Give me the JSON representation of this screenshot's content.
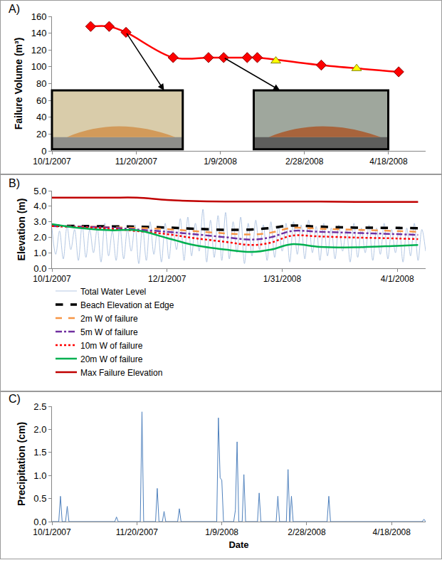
{
  "chart_data": [
    {
      "label": "A)",
      "type": "line",
      "x": [
        "2007-10-24",
        "2007-11-04",
        "2007-11-14",
        "2007-12-12",
        "2008-01-02",
        "2008-01-11",
        "2008-01-25",
        "2008-01-31",
        "2008-02-11",
        "2008-03-09",
        "2008-03-30",
        "2008-04-24"
      ],
      "series": [
        {
          "type": "line",
          "color": "#ff0000",
          "marker": "diamond",
          "line_style": "solid",
          "values": [
            148,
            148,
            141,
            111,
            111,
            111,
            111,
            111,
            null,
            102,
            null,
            94
          ]
        },
        {
          "type": "scatter",
          "color": "#ffff00",
          "marker": "triangle-up",
          "values": [
            null,
            null,
            null,
            null,
            null,
            null,
            null,
            null,
            107,
            null,
            98,
            null
          ]
        }
      ],
      "y_label": "Failure Volume (m³)",
      "xlim": [
        "2007-10-01",
        "2008-05-10"
      ],
      "xticks": [
        {
          "value": "2007-10-01",
          "label": "10/1/2007"
        },
        {
          "value": "2007-11-20",
          "label": "11/20/2007"
        },
        {
          "value": "2008-01-09",
          "label": "1/9/2008"
        },
        {
          "value": "2008-02-28",
          "label": "2/28/2008"
        },
        {
          "value": "2008-04-18",
          "label": "4/18/2008"
        }
      ],
      "ylim": [
        0,
        160
      ],
      "yticks": [
        0,
        20,
        40,
        60,
        80,
        100,
        120,
        140,
        160
      ],
      "grid": false
    },
    {
      "label": "B)",
      "type": "line",
      "legend": "bottom",
      "series": [
        {
          "name": "Total Water Level",
          "type": "line",
          "color": "#b4c8e4",
          "marker": "none",
          "line_style": "solid",
          "x": [
            "2007-10-01",
            "2007-10-03",
            "2007-10-05",
            "2007-10-07",
            "2007-10-09",
            "2007-10-11",
            "2007-10-13",
            "2007-10-15",
            "2007-10-17",
            "2007-10-19",
            "2007-10-21",
            "2007-10-23",
            "2007-10-25",
            "2007-10-27",
            "2007-10-29",
            "2007-10-31",
            "2007-11-02",
            "2007-11-04",
            "2007-11-06",
            "2007-11-08",
            "2007-11-10",
            "2007-11-12",
            "2007-11-14",
            "2007-11-16",
            "2007-11-18",
            "2007-11-20",
            "2007-11-22",
            "2007-11-24",
            "2007-11-26",
            "2007-11-28",
            "2007-11-30",
            "2007-12-02",
            "2007-12-04",
            "2007-12-06",
            "2007-12-08",
            "2007-12-10",
            "2007-12-12",
            "2007-12-14",
            "2007-12-16",
            "2007-12-18",
            "2007-12-20",
            "2007-12-22",
            "2007-12-24",
            "2007-12-26",
            "2007-12-28",
            "2007-12-30",
            "2008-01-01",
            "2008-01-03",
            "2008-01-05",
            "2008-01-07",
            "2008-01-09",
            "2008-01-11",
            "2008-01-13",
            "2008-01-15",
            "2008-01-17",
            "2008-01-19",
            "2008-01-21",
            "2008-01-23",
            "2008-01-25",
            "2008-01-27",
            "2008-01-29",
            "2008-01-31",
            "2008-02-02",
            "2008-02-04",
            "2008-02-06",
            "2008-02-08",
            "2008-02-10",
            "2008-02-12",
            "2008-02-14",
            "2008-02-16",
            "2008-02-18",
            "2008-02-20",
            "2008-02-22",
            "2008-02-24",
            "2008-02-26",
            "2008-02-28",
            "2008-03-01",
            "2008-03-03",
            "2008-03-05",
            "2008-03-07",
            "2008-03-09",
            "2008-03-11",
            "2008-03-13",
            "2008-03-15",
            "2008-03-17",
            "2008-03-19",
            "2008-03-21",
            "2008-03-23",
            "2008-03-25",
            "2008-03-27",
            "2008-03-29",
            "2008-03-31",
            "2008-04-02",
            "2008-04-04",
            "2008-04-06",
            "2008-04-08",
            "2008-04-10",
            "2008-04-12",
            "2008-04-14",
            "2008-04-16"
          ],
          "values": [
            2.6,
            0.9,
            2.4,
            0.6,
            2.7,
            1.2,
            2.5,
            0.5,
            2.8,
            0.7,
            2.5,
            1.0,
            2.6,
            0.4,
            2.9,
            0.8,
            2.4,
            0.5,
            2.7,
            0.6,
            2.5,
            1.1,
            2.8,
            0.3,
            2.7,
            0.5,
            3.0,
            0.9,
            2.6,
            0.4,
            2.9,
            0.6,
            2.7,
            1.2,
            3.2,
            0.5,
            3.3,
            0.8,
            2.9,
            1.1,
            3.8,
            0.4,
            3.1,
            0.7,
            3.4,
            0.5,
            3.6,
            0.6,
            3.0,
            1.0,
            3.3,
            0.3,
            2.9,
            0.8,
            3.1,
            1.2,
            2.8,
            0.5,
            3.0,
            0.7,
            2.7,
            1.1,
            2.9,
            0.4,
            3.0,
            0.9,
            2.8,
            0.6,
            3.1,
            1.0,
            2.7,
            0.5,
            2.9,
            0.8,
            2.6,
            0.6,
            2.8,
            1.1,
            2.5,
            0.4,
            2.9,
            0.7,
            2.6,
            1.0,
            2.8,
            0.5,
            2.6,
            0.9,
            2.9,
            0.6,
            2.5,
            1.0,
            2.7,
            0.4,
            2.6,
            0.8,
            2.9,
            0.5,
            2.5,
            1.1
          ]
        },
        {
          "name": "Beach Elevation at Edge",
          "type": "line",
          "color": "#000000",
          "marker": "none",
          "line_style": "dash",
          "x": [
            "2007-10-01",
            "2007-10-15",
            "2007-11-01",
            "2007-11-15",
            "2007-12-01",
            "2007-12-15",
            "2008-01-01",
            "2008-01-15",
            "2008-01-25",
            "2008-02-05",
            "2008-02-20",
            "2008-03-10",
            "2008-04-01",
            "2008-04-12"
          ],
          "values": [
            2.75,
            2.72,
            2.7,
            2.68,
            2.62,
            2.55,
            2.48,
            2.5,
            2.6,
            2.75,
            2.68,
            2.62,
            2.6,
            2.58
          ]
        },
        {
          "name": "2m W of failure",
          "type": "line",
          "color": "#f79646",
          "marker": "none",
          "line_style": "dash",
          "x": [
            "2007-10-01",
            "2007-10-15",
            "2007-11-01",
            "2007-11-15",
            "2007-12-01",
            "2007-12-15",
            "2008-01-01",
            "2008-01-15",
            "2008-01-25",
            "2008-02-05",
            "2008-02-20",
            "2008-03-10",
            "2008-04-01",
            "2008-04-12"
          ],
          "values": [
            2.72,
            2.7,
            2.65,
            2.6,
            2.52,
            2.4,
            2.25,
            2.18,
            2.3,
            2.6,
            2.55,
            2.48,
            2.4,
            2.35
          ]
        },
        {
          "name": "5m W of failure",
          "type": "line",
          "color": "#7030a0",
          "marker": "none",
          "line_style": "dashdot",
          "x": [
            "2007-10-01",
            "2007-10-15",
            "2007-11-01",
            "2007-11-15",
            "2007-12-01",
            "2007-12-15",
            "2008-01-01",
            "2008-01-15",
            "2008-01-25",
            "2008-02-05",
            "2008-02-20",
            "2008-03-10",
            "2008-04-01",
            "2008-04-12"
          ],
          "values": [
            2.72,
            2.68,
            2.62,
            2.5,
            2.35,
            2.2,
            2.0,
            1.85,
            2.0,
            2.4,
            2.35,
            2.28,
            2.2,
            2.15
          ]
        },
        {
          "name": "10m W of failure",
          "type": "line",
          "color": "#ff0000",
          "marker": "none",
          "line_style": "dot",
          "x": [
            "2007-10-01",
            "2007-10-15",
            "2007-11-01",
            "2007-11-15",
            "2007-12-01",
            "2007-12-15",
            "2008-01-01",
            "2008-01-15",
            "2008-01-25",
            "2008-02-05",
            "2008-02-20",
            "2008-03-10",
            "2008-04-01",
            "2008-04-12"
          ],
          "values": [
            2.72,
            2.65,
            2.55,
            2.4,
            2.2,
            1.95,
            1.7,
            1.5,
            1.65,
            2.1,
            2.05,
            1.98,
            1.92,
            1.88
          ]
        },
        {
          "name": "20m W of failure",
          "type": "line",
          "color": "#00b050",
          "marker": "none",
          "line_style": "solid",
          "x": [
            "2007-10-01",
            "2007-10-15",
            "2007-11-01",
            "2007-11-15",
            "2007-12-01",
            "2007-12-15",
            "2008-01-01",
            "2008-01-15",
            "2008-01-25",
            "2008-02-05",
            "2008-02-20",
            "2008-03-10",
            "2008-04-01",
            "2008-04-12"
          ],
          "values": [
            2.85,
            2.6,
            2.45,
            2.45,
            1.95,
            1.5,
            1.2,
            1.05,
            1.2,
            1.55,
            1.38,
            1.35,
            1.45,
            1.5
          ]
        },
        {
          "name": "Max Failure Elevation",
          "type": "line",
          "color": "#c00000",
          "marker": "none",
          "line_style": "solid",
          "x": [
            "2007-10-01",
            "2007-10-15",
            "2007-11-01",
            "2007-11-15",
            "2007-12-01",
            "2007-12-15",
            "2008-01-01",
            "2008-01-15",
            "2008-01-25",
            "2008-02-05",
            "2008-02-20",
            "2008-03-10",
            "2008-04-01",
            "2008-04-12"
          ],
          "values": [
            4.55,
            4.55,
            4.55,
            4.55,
            4.4,
            4.33,
            4.3,
            4.3,
            4.3,
            4.3,
            4.3,
            4.28,
            4.28,
            4.28
          ]
        }
      ],
      "y_label": "Elevation (m)",
      "xlim": [
        "2007-10-01",
        "2008-04-16"
      ],
      "xticks": [
        {
          "value": "2007-10-01",
          "label": "10/1/2007"
        },
        {
          "value": "2007-12-01",
          "label": "12/1/2007"
        },
        {
          "value": "2008-01-31",
          "label": "1/31/2008"
        },
        {
          "value": "2008-04-01",
          "label": "4/1/2008"
        }
      ],
      "ylim": [
        0,
        5
      ],
      "yticks": [
        {
          "value": 0,
          "label": "0.0"
        },
        {
          "value": 1,
          "label": "1.0"
        },
        {
          "value": 2,
          "label": "2.0"
        },
        {
          "value": 3,
          "label": "3.0"
        },
        {
          "value": 4,
          "label": "4.0"
        },
        {
          "value": 5,
          "label": "5.0"
        }
      ],
      "grid": false
    },
    {
      "label": "C)",
      "type": "line",
      "series": [
        {
          "type": "line",
          "color": "#4f81bd",
          "marker": "none",
          "line_style": "solid",
          "x": [
            "2007-10-01",
            "2007-10-05",
            "2007-10-06",
            "2007-10-07",
            "2007-10-09",
            "2007-10-10",
            "2007-10-11",
            "2007-11-07",
            "2007-11-08",
            "2007-11-09",
            "2007-11-22",
            "2007-11-23",
            "2007-11-24",
            "2007-12-01",
            "2007-12-02",
            "2007-12-03",
            "2007-12-05",
            "2007-12-06",
            "2007-12-07",
            "2007-12-14",
            "2007-12-15",
            "2007-12-16",
            "2008-01-06",
            "2008-01-07",
            "2008-01-08",
            "2008-01-09",
            "2008-01-10",
            "2008-01-16",
            "2008-01-17",
            "2008-01-18",
            "2008-01-19",
            "2008-01-21",
            "2008-01-22",
            "2008-01-23",
            "2008-01-30",
            "2008-01-31",
            "2008-02-01",
            "2008-02-10",
            "2008-02-11",
            "2008-02-12",
            "2008-02-16",
            "2008-02-17",
            "2008-02-18",
            "2008-02-19",
            "2008-02-20",
            "2008-03-11",
            "2008-03-12",
            "2008-03-13",
            "2008-05-06",
            "2008-05-07",
            "2008-05-08"
          ],
          "values": [
            0,
            0,
            0.55,
            0,
            0,
            0.33,
            0,
            0,
            0.1,
            0,
            0,
            2.38,
            0,
            0,
            0.72,
            0,
            0,
            0.22,
            0,
            0,
            0.28,
            0,
            0,
            2.25,
            0.95,
            0.9,
            0,
            0,
            0.25,
            1.73,
            0,
            0,
            1.02,
            0,
            0,
            0.62,
            0,
            0,
            0.55,
            0,
            0,
            1.13,
            0,
            0.55,
            0,
            0,
            0.55,
            0,
            0,
            0.05,
            0
          ]
        }
      ],
      "y_label": "Precipitation (cm)",
      "x_label": "Date",
      "xlim": [
        "2007-10-01",
        "2008-05-08"
      ],
      "xticks": [
        {
          "value": "2007-10-01",
          "label": "10/1/2007"
        },
        {
          "value": "2007-11-20",
          "label": "11/20/2007"
        },
        {
          "value": "2008-01-09",
          "label": "1/9/2008"
        },
        {
          "value": "2008-02-28",
          "label": "2/28/2008"
        },
        {
          "value": "2008-04-18",
          "label": "4/18/2008"
        }
      ],
      "ylim": [
        0,
        2.5
      ],
      "yticks": [
        {
          "value": 0,
          "label": "0.0"
        },
        {
          "value": 0.5,
          "label": "0.5"
        },
        {
          "value": 1,
          "label": "1.0"
        },
        {
          "value": 1.5,
          "label": "1.5"
        },
        {
          "value": 2,
          "label": "2.0"
        },
        {
          "value": 2.5,
          "label": "2.5"
        }
      ],
      "grid": false
    }
  ]
}
